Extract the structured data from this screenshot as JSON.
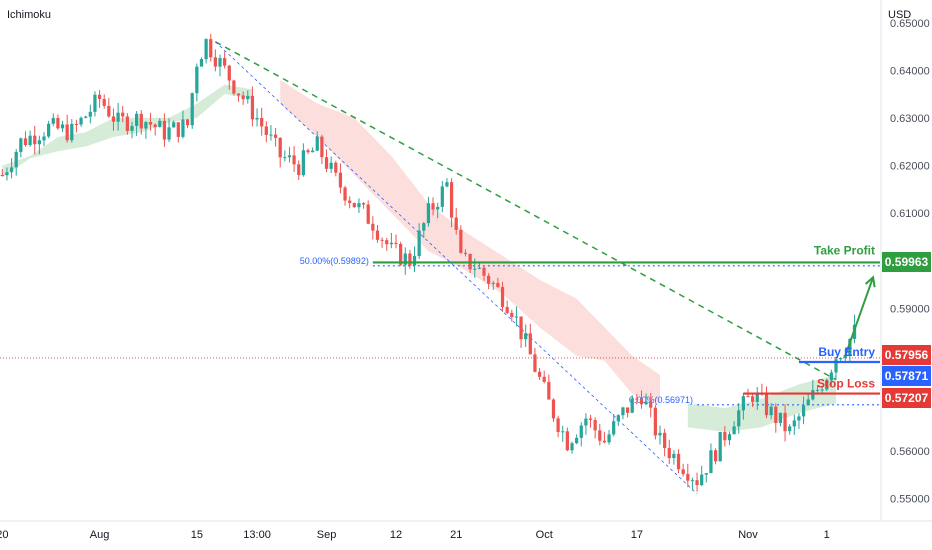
{
  "indicator_label": "Ichimoku",
  "currency": "USD",
  "colors": {
    "up": "#26a69a",
    "down": "#ef5350",
    "take_profit": "#2e9e3f",
    "buy_entry": "#2962ff",
    "stop_loss": "#e53935",
    "current": "#e53935",
    "fib": "#2962ff",
    "cloud_bull": "#cfe9d2",
    "cloud_bear": "#fcd9d6"
  },
  "chart_data": {
    "type": "candlestick",
    "y_axis": {
      "range": [
        0.5455,
        0.651
      ],
      "ticks": [
        "0.55000",
        "0.56000",
        "0.57000",
        "0.58000",
        "0.59000",
        "0.60000",
        "0.61000",
        "0.62000",
        "0.63000",
        "0.64000",
        "0.65000"
      ],
      "tick_values": [
        0.55,
        0.56,
        0.57,
        0.58,
        0.59,
        0.6,
        0.61,
        0.62,
        0.63,
        0.64,
        0.65
      ]
    },
    "x_axis": {
      "labels": [
        "20",
        "Aug",
        "15",
        "13:00",
        "Sep",
        "12",
        "21",
        "Oct",
        "17",
        "Nov",
        "1"
      ],
      "label_index": [
        0,
        21,
        42,
        55,
        70,
        85,
        98,
        117,
        137,
        161,
        178
      ]
    },
    "bars_count": 180,
    "price_path": [
      [
        0,
        0.618
      ],
      [
        4,
        0.625
      ],
      [
        10,
        0.628
      ],
      [
        15,
        0.627
      ],
      [
        21,
        0.634
      ],
      [
        25,
        0.629
      ],
      [
        30,
        0.63
      ],
      [
        35,
        0.627
      ],
      [
        40,
        0.6285
      ],
      [
        42,
        0.642
      ],
      [
        44,
        0.646
      ],
      [
        46,
        0.643
      ],
      [
        50,
        0.637
      ],
      [
        55,
        0.63
      ],
      [
        60,
        0.622
      ],
      [
        64,
        0.62
      ],
      [
        68,
        0.624
      ],
      [
        72,
        0.617
      ],
      [
        76,
        0.612
      ],
      [
        80,
        0.608
      ],
      [
        84,
        0.602
      ],
      [
        88,
        0.6
      ],
      [
        92,
        0.61
      ],
      [
        96,
        0.616
      ],
      [
        99,
        0.6
      ],
      [
        102,
        0.599
      ],
      [
        106,
        0.595
      ],
      [
        110,
        0.59
      ],
      [
        114,
        0.58
      ],
      [
        118,
        0.57
      ],
      [
        122,
        0.562
      ],
      [
        126,
        0.567
      ],
      [
        130,
        0.562
      ],
      [
        134,
        0.568
      ],
      [
        138,
        0.572
      ],
      [
        142,
        0.562
      ],
      [
        146,
        0.558
      ],
      [
        150,
        0.554
      ],
      [
        154,
        0.56
      ],
      [
        158,
        0.567
      ],
      [
        162,
        0.572
      ],
      [
        166,
        0.568
      ],
      [
        170,
        0.564
      ],
      [
        174,
        0.57
      ],
      [
        178,
        0.576
      ],
      [
        180,
        0.58
      ],
      [
        182,
        0.582
      ],
      [
        184,
        0.585
      ],
      [
        186,
        0.583
      ],
      [
        190,
        0.58
      ]
    ],
    "visible_bars_to_index": 190,
    "cloud": {
      "bull_band": [
        [
          0,
          0.6175,
          0.62
        ],
        [
          6,
          0.6215,
          0.622
        ],
        [
          12,
          0.623,
          0.626
        ],
        [
          18,
          0.624,
          0.627
        ],
        [
          24,
          0.626,
          0.63
        ],
        [
          30,
          0.627,
          0.63
        ],
        [
          36,
          0.629,
          0.63
        ],
        [
          42,
          0.63,
          0.633
        ],
        [
          48,
          0.635,
          0.637
        ],
        [
          54,
          0.634,
          0.636
        ]
      ],
      "bear_band": [
        [
          60,
          0.633,
          0.638
        ],
        [
          68,
          0.626,
          0.633
        ],
        [
          76,
          0.618,
          0.63
        ],
        [
          84,
          0.61,
          0.622
        ],
        [
          92,
          0.602,
          0.612
        ],
        [
          100,
          0.598,
          0.606
        ],
        [
          108,
          0.593,
          0.601
        ],
        [
          116,
          0.586,
          0.596
        ],
        [
          124,
          0.58,
          0.592
        ],
        [
          130,
          0.579,
          0.586
        ],
        [
          136,
          0.572,
          0.58
        ],
        [
          142,
          0.57,
          0.576
        ]
      ],
      "bull_band2": [
        [
          148,
          0.565,
          0.57
        ],
        [
          156,
          0.564,
          0.569
        ],
        [
          164,
          0.565,
          0.571
        ],
        [
          172,
          0.568,
          0.574
        ],
        [
          180,
          0.57,
          0.576
        ]
      ]
    },
    "trendline": {
      "from": [
        46,
        0.646
      ],
      "to": [
        180,
        0.575
      ],
      "color": "#2e9e3f",
      "style": "dashed"
    },
    "channel_line": {
      "from": [
        46,
        0.646
      ],
      "to": [
        150,
        0.551
      ],
      "color": "#2962ff",
      "style": "dashed"
    },
    "fib_levels": [
      {
        "label": "50.00%(0.59892)",
        "value": 0.59892,
        "from": 80,
        "to": 190
      },
      {
        "label": "0.00%(0.56971)",
        "value": 0.56971,
        "from": 150,
        "to": 190
      }
    ],
    "current_price_line": {
      "value": 0.57956
    },
    "take_profit_line": {
      "value": 0.59963,
      "from": 80,
      "to": 190
    },
    "buy_entry_line": {
      "value": 0.57871,
      "from": 172,
      "to": 190
    },
    "stop_loss_line": {
      "value": 0.57207,
      "from": 160,
      "to": 190
    },
    "arrow": {
      "from": [
        182,
        0.58
      ],
      "to": [
        188,
        0.5965
      ]
    }
  },
  "annotations": {
    "take_profit": "Take Profit",
    "buy_entry": "Buy Entry",
    "stop_loss": "Stop Loss"
  },
  "badges": {
    "take_profit": "0.59963",
    "current": "0.57956",
    "buy_entry": "0.57871",
    "stop_loss": "0.57207"
  }
}
